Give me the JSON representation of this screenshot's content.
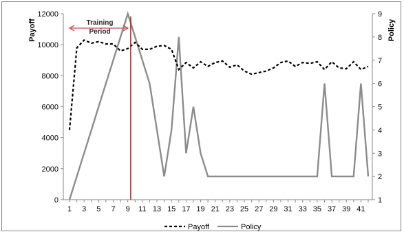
{
  "chart_data": {
    "type": "line",
    "title": "",
    "xlabel": "",
    "ylabel": "Payoff",
    "y2label": "Policy",
    "x": [
      1,
      2,
      3,
      4,
      5,
      6,
      7,
      8,
      9,
      10,
      11,
      12,
      13,
      14,
      15,
      16,
      17,
      18,
      19,
      20,
      21,
      22,
      23,
      24,
      25,
      26,
      27,
      28,
      29,
      30,
      31,
      32,
      33,
      34,
      35,
      36,
      37,
      38,
      39,
      40,
      41,
      42
    ],
    "x_tick_labels": [
      "1",
      "3",
      "5",
      "7",
      "9",
      "11",
      "13",
      "15",
      "17",
      "19",
      "21",
      "23",
      "25",
      "27",
      "29",
      "31",
      "33",
      "35",
      "37",
      "39",
      "41"
    ],
    "ylim": [
      0,
      12000
    ],
    "y_ticks": [
      0,
      2000,
      4000,
      6000,
      8000,
      10000,
      12000
    ],
    "y2lim": [
      1,
      9
    ],
    "y2_ticks": [
      1,
      2,
      3,
      4,
      5,
      6,
      7,
      8,
      9
    ],
    "grid": false,
    "legend_position": "bottom",
    "series": [
      {
        "name": "Payoff",
        "axis": "left",
        "style": "dashed",
        "color": "#000000",
        "values": [
          4500,
          9800,
          10300,
          10100,
          10200,
          10050,
          10050,
          9600,
          9750,
          10150,
          9700,
          9700,
          9900,
          9950,
          9700,
          8400,
          8850,
          8500,
          8900,
          8600,
          8850,
          8950,
          8550,
          8700,
          8300,
          8100,
          8200,
          8300,
          8500,
          8850,
          8950,
          8600,
          8850,
          8800,
          8900,
          8400,
          8900,
          8500,
          8450,
          8900,
          8400,
          8600
        ]
      },
      {
        "name": "Policy",
        "axis": "right",
        "style": "solid",
        "color": "#8c8c8c",
        "values": [
          1,
          2,
          3,
          4,
          5,
          6,
          7,
          8,
          9,
          8,
          7,
          6,
          4,
          2,
          4,
          8,
          3,
          5,
          3,
          2,
          2,
          2,
          2,
          2,
          2,
          2,
          2,
          2,
          2,
          2,
          2,
          2,
          2,
          2,
          2,
          6,
          2,
          2,
          2,
          2,
          6,
          2
        ]
      }
    ],
    "annotations": [
      {
        "text_lines": [
          "Training",
          "Period"
        ],
        "type": "double-arrow",
        "x_from": 1,
        "x_to": 9.4,
        "color": "#c0504d"
      },
      {
        "type": "vertical-line",
        "x": 9.4,
        "color": "#b02020"
      }
    ]
  }
}
